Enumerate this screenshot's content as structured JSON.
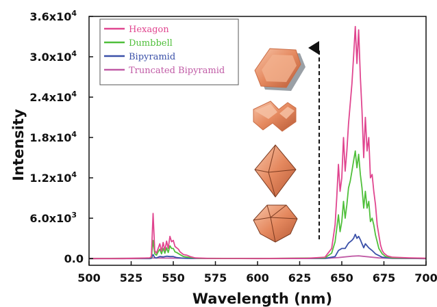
{
  "chart_data": {
    "type": "line",
    "xlabel": "Wavelength (nm)",
    "ylabel": "Intensity",
    "xlim": [
      500,
      700
    ],
    "ylim": [
      -1000,
      36000
    ],
    "x_ticks": [
      "500",
      "525",
      "550",
      "575",
      "600",
      "625",
      "650",
      "675",
      "700"
    ],
    "y_ticks": [
      {
        "value": 0,
        "label": "0.0"
      },
      {
        "value": 6000,
        "label": "6.0x10",
        "exp": "3"
      },
      {
        "value": 12000,
        "label": "1.2x10",
        "exp": "4"
      },
      {
        "value": 18000,
        "label": "1.8x10",
        "exp": "4"
      },
      {
        "value": 24000,
        "label": "2.4x10",
        "exp": "4"
      },
      {
        "value": 30000,
        "label": "3.0x10",
        "exp": "4"
      },
      {
        "value": 36000,
        "label": "3.6x10",
        "exp": "4"
      }
    ],
    "grid": false,
    "legend_position": "top-left",
    "series": [
      {
        "name": "Hexagon",
        "color": "#e0458f",
        "x": [
          500,
          520,
          530,
          536,
          537,
          538,
          539,
          540,
          541,
          542,
          543,
          544,
          545,
          546,
          547,
          548,
          549,
          550,
          551,
          552,
          553,
          554,
          556,
          558,
          560,
          563,
          570,
          600,
          630,
          640,
          644,
          646,
          647,
          648,
          649,
          650,
          651,
          652,
          653,
          654,
          655,
          656,
          657,
          658,
          659,
          660,
          661,
          662,
          663,
          664,
          665,
          666,
          667,
          668,
          669,
          670,
          671,
          672,
          673,
          674,
          675,
          677,
          680,
          690,
          700
        ],
        "values": [
          0,
          0,
          50,
          100,
          300,
          6700,
          1200,
          800,
          1500,
          2200,
          1100,
          2400,
          1200,
          2600,
          1500,
          3300,
          2500,
          2700,
          1800,
          1600,
          1400,
          1000,
          600,
          500,
          300,
          100,
          30,
          20,
          50,
          200,
          1500,
          5000,
          9000,
          14000,
          10000,
          12000,
          18000,
          13000,
          16000,
          20000,
          23000,
          26000,
          30000,
          34500,
          29000,
          34000,
          27000,
          22000,
          15000,
          21000,
          16000,
          18000,
          12000,
          12500,
          10000,
          8000,
          5000,
          3500,
          2000,
          1200,
          800,
          400,
          200,
          100,
          50
        ]
      },
      {
        "name": "Dumbbell",
        "color": "#4fbf3a",
        "x": [
          500,
          530,
          536,
          537,
          538,
          539,
          540,
          541,
          542,
          543,
          544,
          545,
          546,
          547,
          548,
          549,
          550,
          551,
          552,
          554,
          556,
          560,
          565,
          600,
          640,
          644,
          646,
          648,
          649,
          650,
          651,
          652,
          653,
          654,
          655,
          656,
          657,
          658,
          659,
          660,
          661,
          662,
          663,
          664,
          665,
          666,
          667,
          668,
          669,
          670,
          671,
          672,
          674,
          676,
          680,
          700
        ],
        "values": [
          0,
          30,
          80,
          200,
          2700,
          700,
          500,
          1000,
          1400,
          700,
          1500,
          800,
          1600,
          900,
          1900,
          1500,
          1500,
          1000,
          900,
          600,
          300,
          150,
          40,
          10,
          100,
          800,
          2500,
          6500,
          4000,
          5500,
          8500,
          6000,
          8000,
          10500,
          11500,
          13000,
          14500,
          16000,
          13500,
          15500,
          12500,
          10500,
          7500,
          10000,
          7500,
          8500,
          5500,
          6000,
          5000,
          3500,
          2500,
          1500,
          700,
          300,
          100,
          30
        ]
      },
      {
        "name": "Bipyramid",
        "color": "#3a50a8",
        "x": [
          500,
          536,
          537,
          538,
          539,
          540,
          542,
          544,
          546,
          548,
          550,
          552,
          556,
          560,
          640,
          646,
          648,
          650,
          652,
          654,
          656,
          657,
          658,
          659,
          660,
          661,
          662,
          663,
          664,
          666,
          668,
          670,
          674,
          680,
          700
        ],
        "values": [
          0,
          0,
          50,
          600,
          150,
          100,
          300,
          250,
          350,
          300,
          300,
          150,
          60,
          20,
          30,
          300,
          1200,
          1500,
          1500,
          2300,
          2700,
          3000,
          3600,
          3000,
          3300,
          2800,
          2200,
          1600,
          2200,
          1600,
          1200,
          700,
          200,
          50,
          0
        ]
      },
      {
        "name": "Truncated Bipyramid",
        "color": "#c05aa5",
        "x": [
          500,
          538,
          600,
          640,
          648,
          652,
          656,
          660,
          664,
          668,
          672,
          680,
          700
        ],
        "values": [
          0,
          80,
          0,
          20,
          150,
          250,
          350,
          400,
          300,
          200,
          100,
          30,
          0
        ]
      }
    ]
  }
}
